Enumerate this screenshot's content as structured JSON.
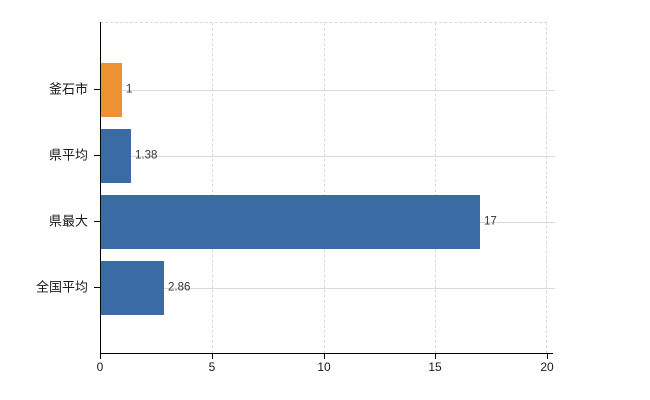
{
  "chart_data": {
    "type": "bar",
    "orientation": "horizontal",
    "categories": [
      "釜石市",
      "県平均",
      "県最大",
      "全国平均"
    ],
    "values": [
      1,
      1.38,
      17,
      2.86
    ],
    "value_labels": [
      "1",
      "1.38",
      "17",
      "2.86"
    ],
    "series": [
      {
        "name": "",
        "values": [
          1,
          1.38,
          17,
          2.86
        ]
      }
    ],
    "bar_colors": [
      "#ee9132",
      "#3a6ba5",
      "#3a6ba5",
      "#3a6ba5"
    ],
    "xlim": [
      0,
      20
    ],
    "x_ticks": [
      "0",
      "5",
      "10",
      "15",
      "20"
    ],
    "x_tick_values": [
      0,
      5,
      10,
      15,
      20
    ],
    "grid": true,
    "legend_position": "none",
    "colors": {
      "highlight_bar": "#ee9132",
      "default_bar": "#3a6ba5",
      "gridline": "#d9d9d9",
      "axis": "#000000",
      "background": "#ffffff",
      "value_text": "#333333",
      "label_text": "#1a1a1a"
    }
  }
}
